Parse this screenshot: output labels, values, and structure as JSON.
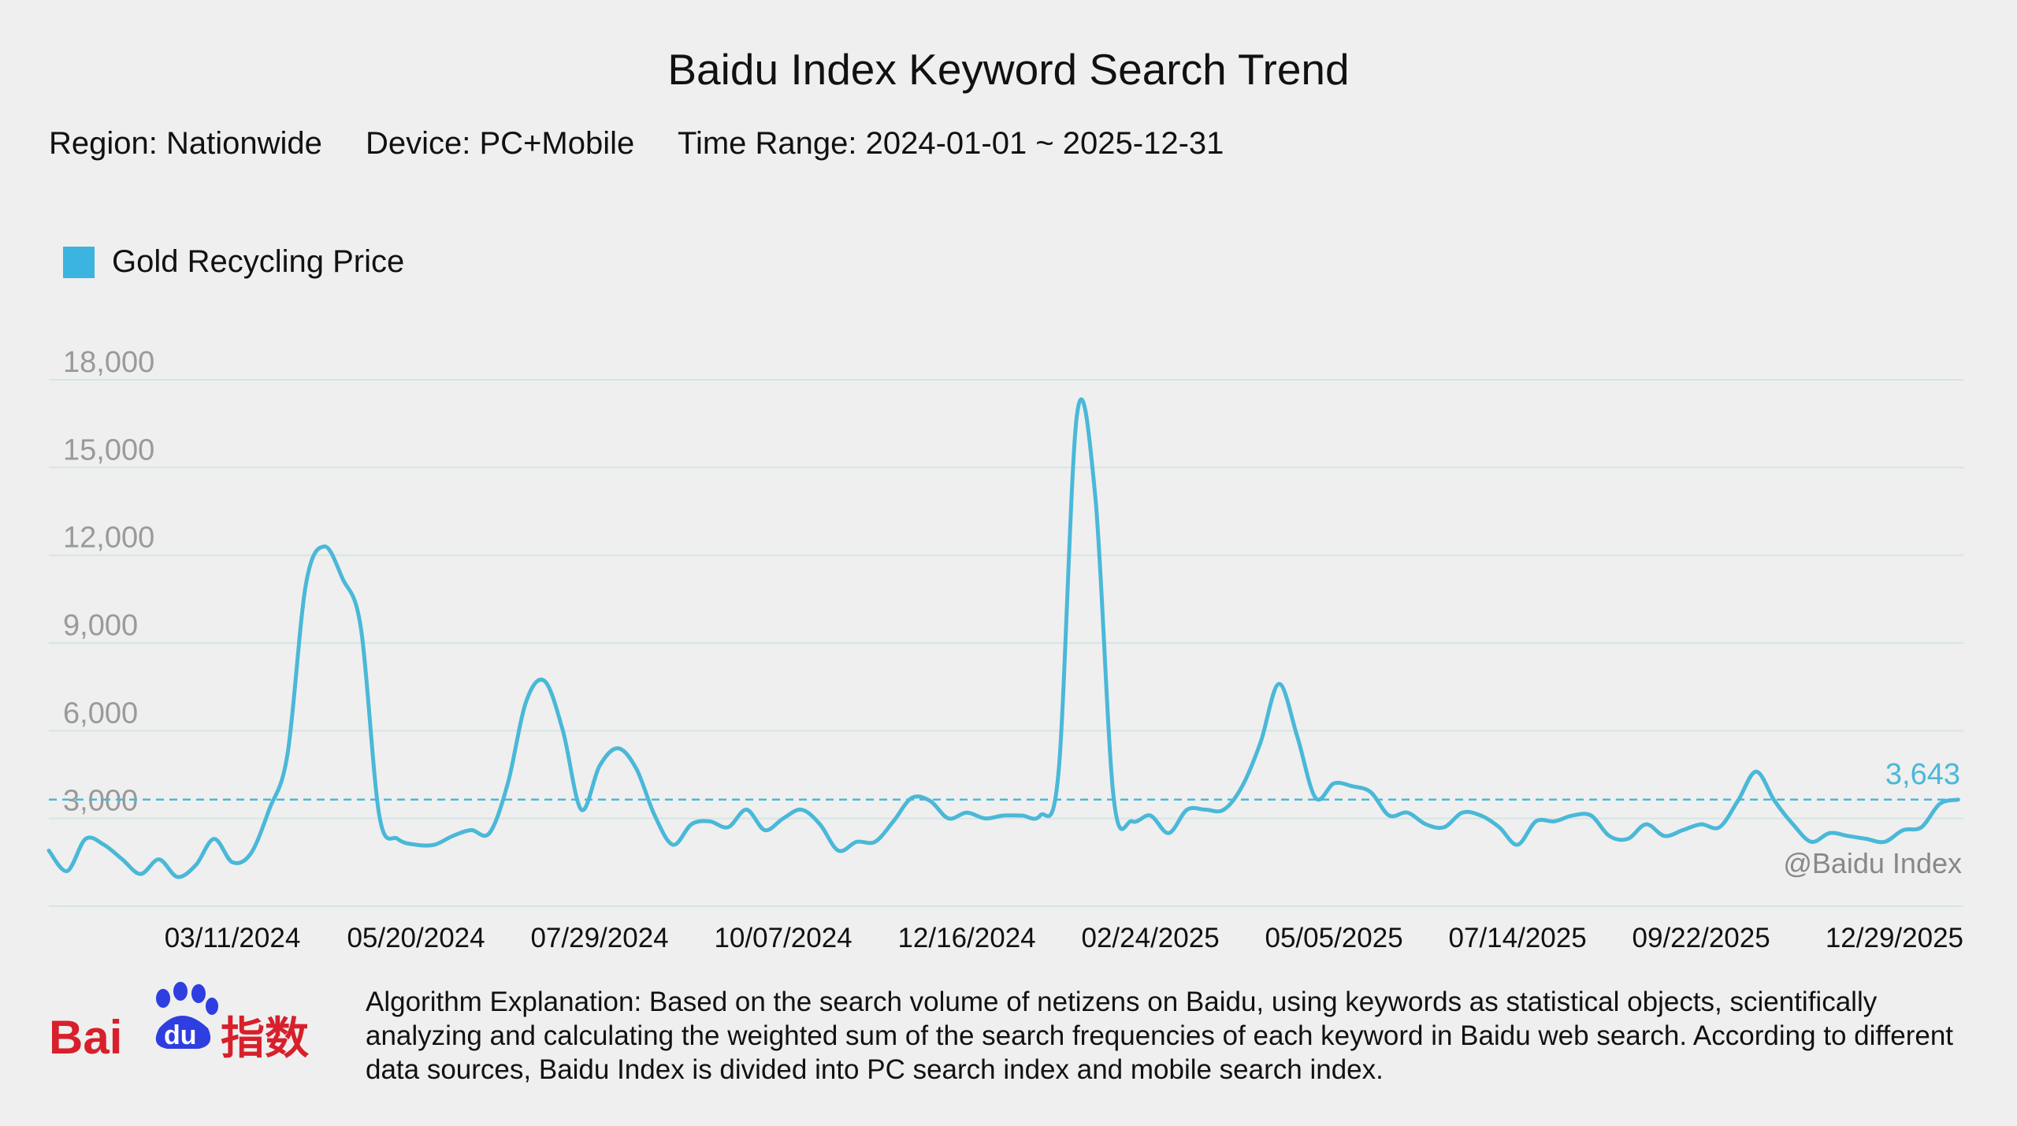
{
  "colors": {
    "line": "#4ab8d8",
    "legend": "#3cb4e0",
    "grid": "#d6e4e4",
    "tick": "#9a9a9a",
    "logo_red": "#d7202b",
    "logo_blue": "#2e3ee0"
  },
  "header": {
    "title": "Baidu Index Keyword Search Trend",
    "region": "Region: Nationwide",
    "device": "Device: PC+Mobile",
    "time_range": "Time Range: 2024-01-01 ~ 2025-12-31"
  },
  "legend": {
    "label": "Gold Recycling Price"
  },
  "chart_data": {
    "type": "line",
    "title": "Baidu Index Keyword Search Trend",
    "xlabel": "",
    "ylabel": "",
    "ylim": [
      0,
      18000
    ],
    "y_ticks": [
      3000,
      6000,
      9000,
      12000,
      15000,
      18000
    ],
    "y_tick_labels": [
      "3,000",
      "6,000",
      "9,000",
      "12,000",
      "15,000",
      "18,000"
    ],
    "x_tick_labels": [
      "03/11/2024",
      "05/20/2024",
      "07/29/2024",
      "10/07/2024",
      "12/16/2024",
      "02/24/2025",
      "05/05/2025",
      "07/14/2025",
      "09/22/2025",
      "12/29/2025"
    ],
    "x_tick_dates": [
      "2024-03-11",
      "2024-05-20",
      "2024-07-29",
      "2024-10-07",
      "2024-12-16",
      "2025-02-24",
      "2025-05-05",
      "2025-07-14",
      "2025-09-22",
      "2025-12-29"
    ],
    "x_range": [
      "2024-01-01",
      "2025-12-31"
    ],
    "grid": true,
    "legend_position": "top-left",
    "reference_line": {
      "value": 3643,
      "label": "3,643",
      "style": "dashed"
    },
    "annotations": [
      "@Baidu Index"
    ],
    "series": [
      {
        "name": "Gold Recycling Price",
        "x": [
          "2024-01-01",
          "2024-01-08",
          "2024-01-15",
          "2024-01-22",
          "2024-01-29",
          "2024-02-05",
          "2024-02-12",
          "2024-02-19",
          "2024-02-26",
          "2024-03-04",
          "2024-03-11",
          "2024-03-18",
          "2024-03-25",
          "2024-04-01",
          "2024-04-08",
          "2024-04-15",
          "2024-04-22",
          "2024-04-29",
          "2024-05-06",
          "2024-05-13",
          "2024-05-20",
          "2024-05-27",
          "2024-06-03",
          "2024-06-10",
          "2024-06-17",
          "2024-06-24",
          "2024-07-01",
          "2024-07-08",
          "2024-07-15",
          "2024-07-22",
          "2024-07-29",
          "2024-08-05",
          "2024-08-12",
          "2024-08-19",
          "2024-08-26",
          "2024-09-02",
          "2024-09-09",
          "2024-09-16",
          "2024-09-23",
          "2024-09-30",
          "2024-10-07",
          "2024-10-14",
          "2024-10-21",
          "2024-10-28",
          "2024-11-04",
          "2024-11-11",
          "2024-11-18",
          "2024-11-25",
          "2024-12-02",
          "2024-12-09",
          "2024-12-16",
          "2024-12-23",
          "2024-12-30",
          "2025-01-06",
          "2025-01-13",
          "2025-01-20",
          "2025-01-27",
          "2025-02-03",
          "2025-02-10",
          "2025-02-17",
          "2025-02-24",
          "2025-03-03",
          "2025-03-10",
          "2025-03-17",
          "2025-03-24",
          "2025-03-31",
          "2025-04-07",
          "2025-04-14",
          "2025-04-21",
          "2025-04-28",
          "2025-05-05",
          "2025-05-12",
          "2025-05-19",
          "2025-05-26",
          "2025-06-02",
          "2025-06-09",
          "2025-06-16",
          "2025-06-23",
          "2025-06-30",
          "2025-07-07",
          "2025-07-14",
          "2025-07-21",
          "2025-07-28",
          "2025-08-04",
          "2025-08-11",
          "2025-08-18",
          "2025-08-25",
          "2025-09-01",
          "2025-09-08",
          "2025-09-15",
          "2025-09-22",
          "2025-09-29",
          "2025-10-06",
          "2025-10-13",
          "2025-10-20",
          "2025-10-27",
          "2025-11-03",
          "2025-11-10",
          "2025-11-17",
          "2025-11-24",
          "2025-12-01",
          "2025-12-08",
          "2025-12-15",
          "2025-12-22",
          "2025-12-29"
        ],
        "values": [
          1900,
          1200,
          2300,
          2100,
          1600,
          1100,
          1600,
          1000,
          1400,
          2300,
          1500,
          1800,
          3300,
          5200,
          11000,
          12300,
          11200,
          9500,
          3100,
          2300,
          2100,
          2100,
          2400,
          2600,
          2500,
          4200,
          7000,
          7700,
          6000,
          3300,
          4800,
          5400,
          4700,
          3100,
          2100,
          2800,
          2900,
          2700,
          3300,
          2600,
          3000,
          3300,
          2800,
          1900,
          2200,
          2200,
          2900,
          3700,
          3600,
          3000,
          3200,
          3000,
          3100,
          3100,
          3100,
          4600,
          16800,
          14000,
          3700,
          2900,
          3100,
          2500,
          3300,
          3300,
          3300,
          4100,
          5600,
          7600,
          5800,
          3700,
          4200,
          4100,
          3900,
          3100,
          3200,
          2800,
          2700,
          3200,
          3100,
          2700,
          2100,
          2900,
          2900,
          3100,
          3100,
          2400,
          2300,
          2800,
          2400,
          2600,
          2800,
          2700,
          3600,
          4600,
          3600,
          2800,
          2200,
          2500,
          2400,
          2300,
          2200,
          2600,
          2700,
          3500,
          3643
        ]
      }
    ]
  },
  "footer": {
    "algorithm_text": "Algorithm Explanation: Based on the search volume of netizens on Baidu, using keywords as statistical objects, scientifically analyzing and calculating the weighted sum of the search frequencies of each keyword in Baidu web search. According to different data sources, Baidu Index is divided into PC search index and mobile search index.",
    "logo_text_bai": "Bai",
    "logo_text_du": "du",
    "logo_text_cn": "指数"
  }
}
